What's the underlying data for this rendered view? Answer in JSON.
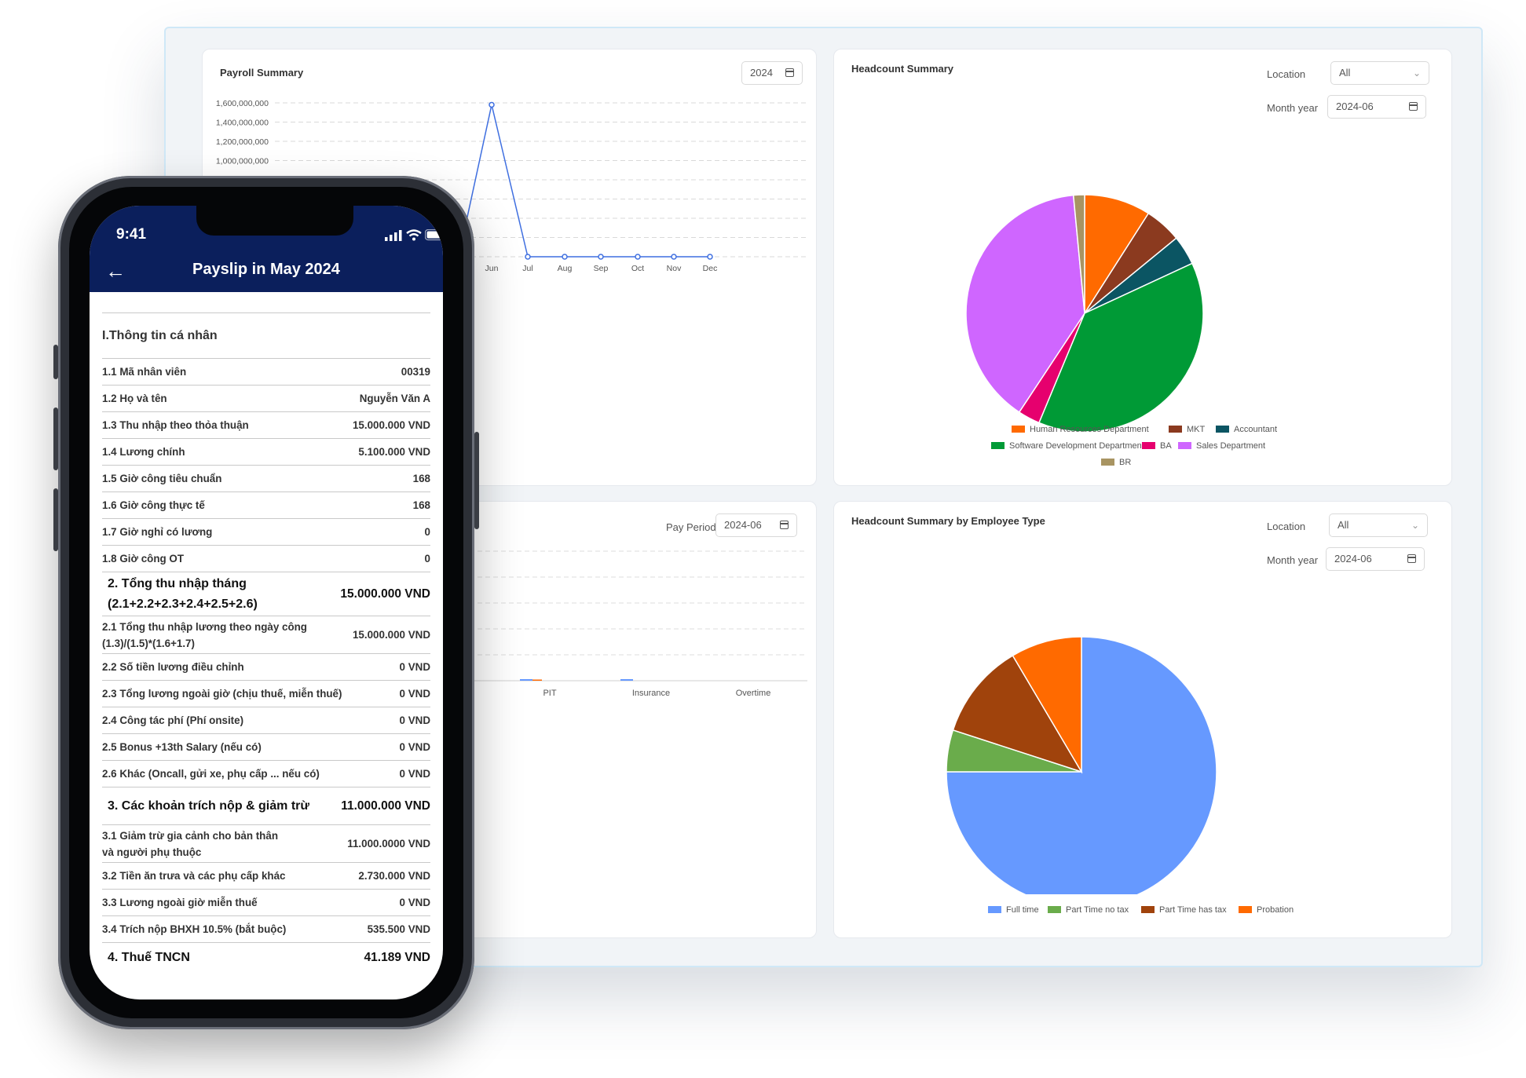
{
  "payroll": {
    "title": "Payroll Summary",
    "year": "2024",
    "chart_data": {
      "type": "line",
      "title": "Payroll Summary",
      "y_ticks": [
        "1,600,000,000",
        "1,400,000,000",
        "1,200,000,000",
        "1,000,000,000"
      ],
      "ylim": [
        0,
        1600000000
      ],
      "x": [
        "Jun",
        "Jul",
        "Aug",
        "Sep",
        "Oct",
        "Nov",
        "Dec"
      ],
      "visible_partial_tick": "y",
      "values": [
        1580000000,
        0,
        0,
        0,
        0,
        0,
        0
      ],
      "color": "#3f6fe0",
      "grid": true
    }
  },
  "headcount": {
    "title": "Headcount Summary",
    "location_label": "Location",
    "location_value": "All",
    "month_label": "Month year",
    "month_value": "2024-06",
    "chart_data": {
      "type": "pie",
      "labels": [
        "Human Resources Department",
        "MKT",
        "Accountant",
        "Software Development Department",
        "BA",
        "Sales Department",
        "BR"
      ],
      "values": [
        9,
        5,
        4,
        38,
        3,
        39,
        1.5
      ],
      "colors": [
        "#ff6a00",
        "#8b3a1f",
        "#0b5563",
        "#009a36",
        "#e6006e",
        "#cf66ff",
        "#a89462"
      ]
    }
  },
  "payperiod": {
    "label": "Pay Period",
    "value": "2024-06",
    "x": [
      "PIT",
      "Insurance",
      "Overtime"
    ],
    "legend": [
      {
        "name": "Part Time no tax",
        "color": "#6aac4b"
      },
      {
        "name": "Part Time has tax",
        "color": "#a0430c"
      }
    ]
  },
  "headcount_type": {
    "title": "Headcount Summary by Employee Type",
    "location_label": "Location",
    "location_value": "All",
    "month_label": "Month year",
    "month_value": "2024-06",
    "chart_data": {
      "type": "pie",
      "labels": [
        "Full time",
        "Part Time no tax",
        "Part Time has tax",
        "Probation"
      ],
      "values": [
        75,
        5,
        11.5,
        8.5
      ],
      "colors": [
        "#6699ff",
        "#6aac4b",
        "#a0430c",
        "#ff6a00"
      ]
    }
  },
  "phone": {
    "time": "9:41",
    "title": "Payslip in May 2024",
    "section1": "I.Thông tin cá nhân",
    "rows": [
      {
        "label": "1.1 Mã nhân viên",
        "value": "00319"
      },
      {
        "label": "1.2 Họ và tên",
        "value": "Nguyễn Văn A"
      },
      {
        "label": "1.3 Thu nhập theo thỏa thuận",
        "value": "15.000.000 VND"
      },
      {
        "label": "1.4 Lương chính",
        "value": "5.100.000 VND"
      },
      {
        "label": "1.5 Giờ công tiêu chuẩn",
        "value": "168"
      },
      {
        "label": "1.6 Giờ công thực tế",
        "value": "168"
      },
      {
        "label": "1.7 Giờ nghỉ có lương",
        "value": "0"
      },
      {
        "label": "1.8 Giờ công OT",
        "value": "0"
      },
      {
        "label": "2. Tổng thu nhập tháng\n(2.1+2.2+2.3+2.4+2.5+2.6)",
        "value": "15.000.000 VND",
        "big": true
      },
      {
        "label": "2.1 Tổng thu nhập lương theo ngày công\n(1.3)/(1.5)*(1.6+1.7)",
        "value": "15.000.000 VND"
      },
      {
        "label": "2.2 Số tiền lương điều chỉnh",
        "value": "0 VND"
      },
      {
        "label": "2.3 Tổng lương ngoài giờ (chịu thuế, miễn thuế)",
        "value": "0 VND"
      },
      {
        "label": "2.4 Công tác phí (Phí onsite)",
        "value": "0 VND"
      },
      {
        "label": "2.5 Bonus +13th Salary (nếu có)",
        "value": "0 VND"
      },
      {
        "label": "2.6 Khác (Oncall, gửi xe, phụ cấp ... nếu có)",
        "value": "0 VND"
      },
      {
        "label": "3. Các khoản trích nộp & giảm trừ",
        "value": "11.000.000 VND",
        "big": true
      },
      {
        "label": "3.1 Giảm trừ gia cảnh cho bản thân\nvà người phụ thuộc",
        "value": "11.000.0000 VND"
      },
      {
        "label": "3.2 Tiền ăn trưa và các phụ cấp khác",
        "value": "2.730.000 VND"
      },
      {
        "label": "3.3 Lương ngoài giờ miễn thuế",
        "value": "0 VND"
      },
      {
        "label": "3.4 Trích nộp BHXH 10.5% (bắt buộc)",
        "value": "535.500 VND"
      },
      {
        "label": "4. Thuế TNCN",
        "value": "41.189 VND",
        "big": true
      }
    ]
  }
}
